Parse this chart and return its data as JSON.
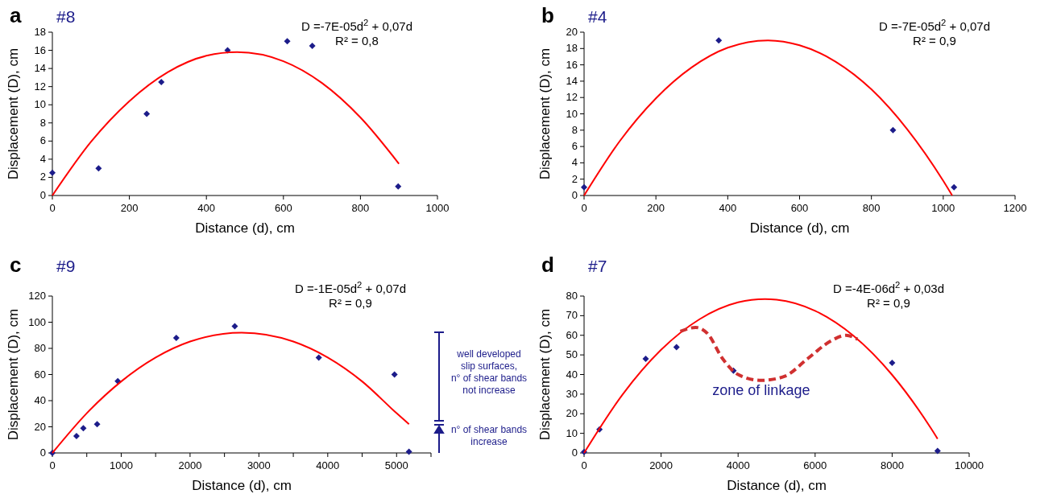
{
  "chart_data": [
    {
      "type": "scatter",
      "title": "a",
      "subtitle": "#8",
      "xlabel": "Distance (d), cm",
      "ylabel": "Displacement (D), cm",
      "xlim": [
        0,
        1000
      ],
      "xticks": [
        0,
        200,
        400,
        600,
        800,
        1000
      ],
      "ylim": [
        0,
        18
      ],
      "yticks": [
        0,
        2,
        4,
        6,
        8,
        10,
        12,
        14,
        16,
        18
      ],
      "grid": false,
      "annotations": [
        "D =-7E-05d$^{2}$ + 0,07d",
        "R² = 0,8"
      ],
      "series": [
        {
          "marker": "diamond",
          "color": "#1c1c8a",
          "x": [
            0,
            120,
            245,
            283,
            455,
            610,
            675,
            898
          ],
          "values": [
            2.5,
            3,
            9,
            12.5,
            16,
            17,
            16.5,
            1
          ]
        },
        {
          "type": "line",
          "marker": "none",
          "color": "#ff0000",
          "line_style": "solid",
          "x": [
            0,
            100,
            200,
            300,
            400,
            480,
            600,
            700,
            800,
            900
          ],
          "values": [
            0,
            5.9,
            10.4,
            13.6,
            15.4,
            15.8,
            14.8,
            12.4,
            8.6,
            3.5
          ]
        }
      ]
    },
    {
      "type": "scatter",
      "title": "b",
      "subtitle": "#4",
      "xlabel": "Distance (d), cm",
      "ylabel": "Displacement (D), cm",
      "xlim": [
        0,
        1200
      ],
      "xticks": [
        0,
        200,
        400,
        600,
        800,
        1000,
        1200
      ],
      "ylim": [
        0,
        20
      ],
      "yticks": [
        0,
        2,
        4,
        6,
        8,
        10,
        12,
        14,
        16,
        18,
        20
      ],
      "grid": false,
      "annotations": [
        "D =-7E-05d$^{2}$ + 0,07d",
        "R² = 0,9"
      ],
      "series": [
        {
          "marker": "diamond",
          "color": "#1c1c8a",
          "x": [
            0,
            375,
            860,
            1030
          ],
          "values": [
            1,
            19,
            8,
            1
          ]
        },
        {
          "type": "line",
          "marker": "none",
          "color": "#ff0000",
          "line_style": "solid",
          "x": [
            0,
            100,
            200,
            300,
            400,
            512,
            600,
            700,
            800,
            900,
            1000,
            1025
          ],
          "values": [
            0,
            6.7,
            11.9,
            15.7,
            18.1,
            19,
            18.4,
            16.4,
            13,
            8.1,
            1.8,
            0
          ]
        }
      ]
    },
    {
      "type": "scatter",
      "title": "c",
      "subtitle": "#9",
      "xlabel": "Distance (d), cm",
      "ylabel": "Displacement (D), cm",
      "xlim": [
        0,
        5500
      ],
      "xticks": [
        0,
        {
          "value": 500,
          "label": null
        },
        1000,
        {
          "value": 1500,
          "label": null
        },
        2000,
        {
          "value": 2500,
          "label": null
        },
        3000,
        {
          "value": 3500,
          "label": null
        },
        4000,
        {
          "value": 4500,
          "label": null
        },
        5000,
        {
          "value": 5500,
          "label": null
        }
      ],
      "ylim": [
        0,
        120
      ],
      "yticks": [
        0,
        20,
        40,
        60,
        80,
        100,
        120
      ],
      "grid": false,
      "annotations": [
        "D =-1E-05d$^{2}$ + 0,07d",
        "R² = 0,9",
        "well developed\nslip surfaces,\nn° of shear bands\nnot increase",
        "n° of shear bands\nincrease"
      ],
      "series": [
        {
          "marker": "diamond",
          "color": "#1c1c8a",
          "x": [
            0,
            350,
            450,
            650,
            950,
            1800,
            2650,
            3870,
            4970,
            5180
          ],
          "values": [
            0,
            13,
            19,
            22,
            55,
            88,
            97,
            73,
            60,
            1
          ]
        },
        {
          "type": "line",
          "marker": "none",
          "color": "#ff0000",
          "line_style": "solid",
          "x": [
            0,
            500,
            1000,
            1500,
            2000,
            2750,
            3500,
            4000,
            4500,
            5000,
            5180
          ],
          "values": [
            0,
            30.4,
            54.7,
            73,
            85.2,
            92,
            85.2,
            73,
            54.7,
            30.4,
            22
          ]
        }
      ]
    },
    {
      "type": "scatter",
      "title": "d",
      "subtitle": "#7",
      "xlabel": "Distance (d), cm",
      "ylabel": "Displacement (D), cm",
      "xlim": [
        0,
        10000
      ],
      "xticks": [
        0,
        2000,
        4000,
        6000,
        8000,
        10000
      ],
      "ylim": [
        0,
        80
      ],
      "yticks": [
        0,
        10,
        20,
        30,
        40,
        50,
        60,
        70,
        80
      ],
      "grid": false,
      "annotations": [
        "D =-4E-06d$^{2}$ + 0,03d",
        "R² = 0,9",
        "zone of linkage"
      ],
      "series": [
        {
          "marker": "diamond",
          "color": "#1c1c8a",
          "x": [
            0,
            400,
            1600,
            2400,
            3880,
            8000,
            9180
          ],
          "values": [
            0.5,
            12,
            48,
            54,
            42,
            46,
            1
          ]
        },
        {
          "type": "line",
          "marker": "none",
          "color": "#ff0000",
          "line_style": "solid",
          "x": [
            0,
            1000,
            2000,
            3000,
            4000,
            4700,
            5000,
            6000,
            7000,
            8000,
            9000,
            9180
          ],
          "values": [
            0,
            29.8,
            52.6,
            68.2,
            76.8,
            78.5,
            78.2,
            72.5,
            59.7,
            39.8,
            12.8,
            7.2
          ]
        },
        {
          "type": "line",
          "marker": "none",
          "color": "#d03030",
          "line_style": "dashed",
          "x": [
            2500,
            2900,
            3200,
            3600,
            4000,
            4600,
            5200,
            5800,
            6400,
            6800,
            7100
          ],
          "values": [
            62,
            64,
            61,
            48,
            40,
            37,
            39,
            48,
            57,
            60,
            58
          ]
        }
      ]
    }
  ]
}
